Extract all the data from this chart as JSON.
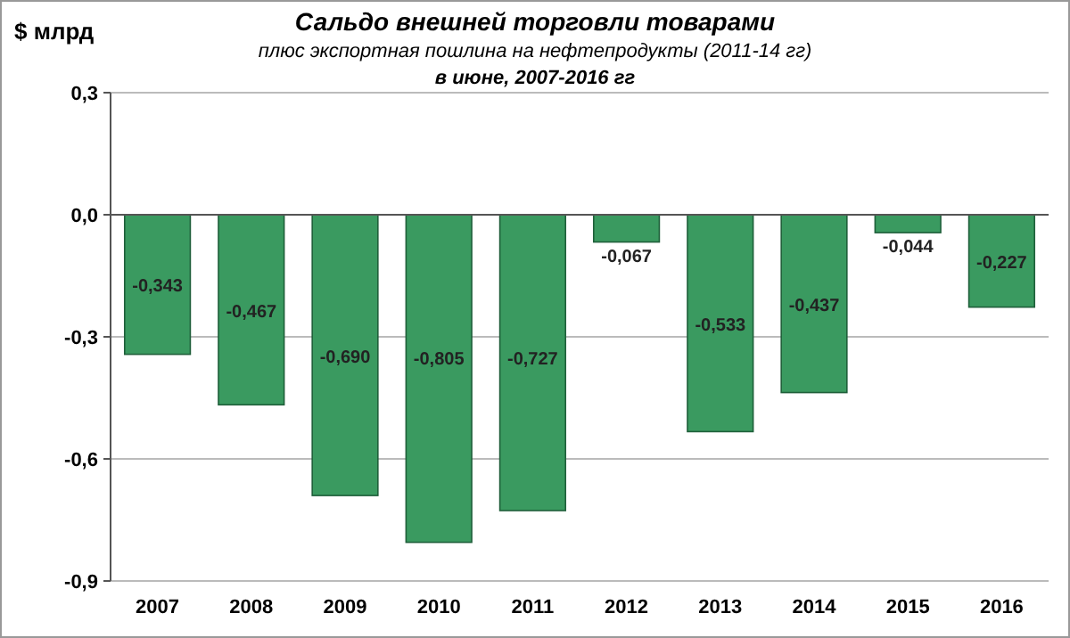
{
  "chart_data": {
    "type": "bar",
    "title": "Сальдо внешней торговли товарами",
    "subtitle": "плюс экспортная пошлина на нефтепродукты (2011-14 гг)\nв июне, 2007-2016 гг",
    "ylabel": "$ млрд",
    "categories": [
      "2007",
      "2008",
      "2009",
      "2010",
      "2011",
      "2012",
      "2013",
      "2014",
      "2015",
      "2016"
    ],
    "values": [
      -0.343,
      -0.467,
      -0.69,
      -0.805,
      -0.727,
      -0.067,
      -0.533,
      -0.437,
      -0.044,
      -0.227
    ],
    "value_labels": [
      "-0,343",
      "-0,467",
      "-0,690",
      "-0,805",
      "-0,727",
      "-0,067",
      "-0,533",
      "-0,437",
      "-0,044",
      "-0,227"
    ],
    "color": "#3a9a60",
    "ylim": [
      -0.9,
      0.3
    ],
    "yticks": [
      {
        "value": -0.9,
        "label": "-0,9"
      },
      {
        "value": -0.6,
        "label": "-0,6"
      },
      {
        "value": -0.3,
        "label": "-0,3"
      },
      {
        "value": 0,
        "label": "0,0"
      },
      {
        "value": 0.3,
        "label": "0,3"
      }
    ],
    "grid": "y"
  }
}
